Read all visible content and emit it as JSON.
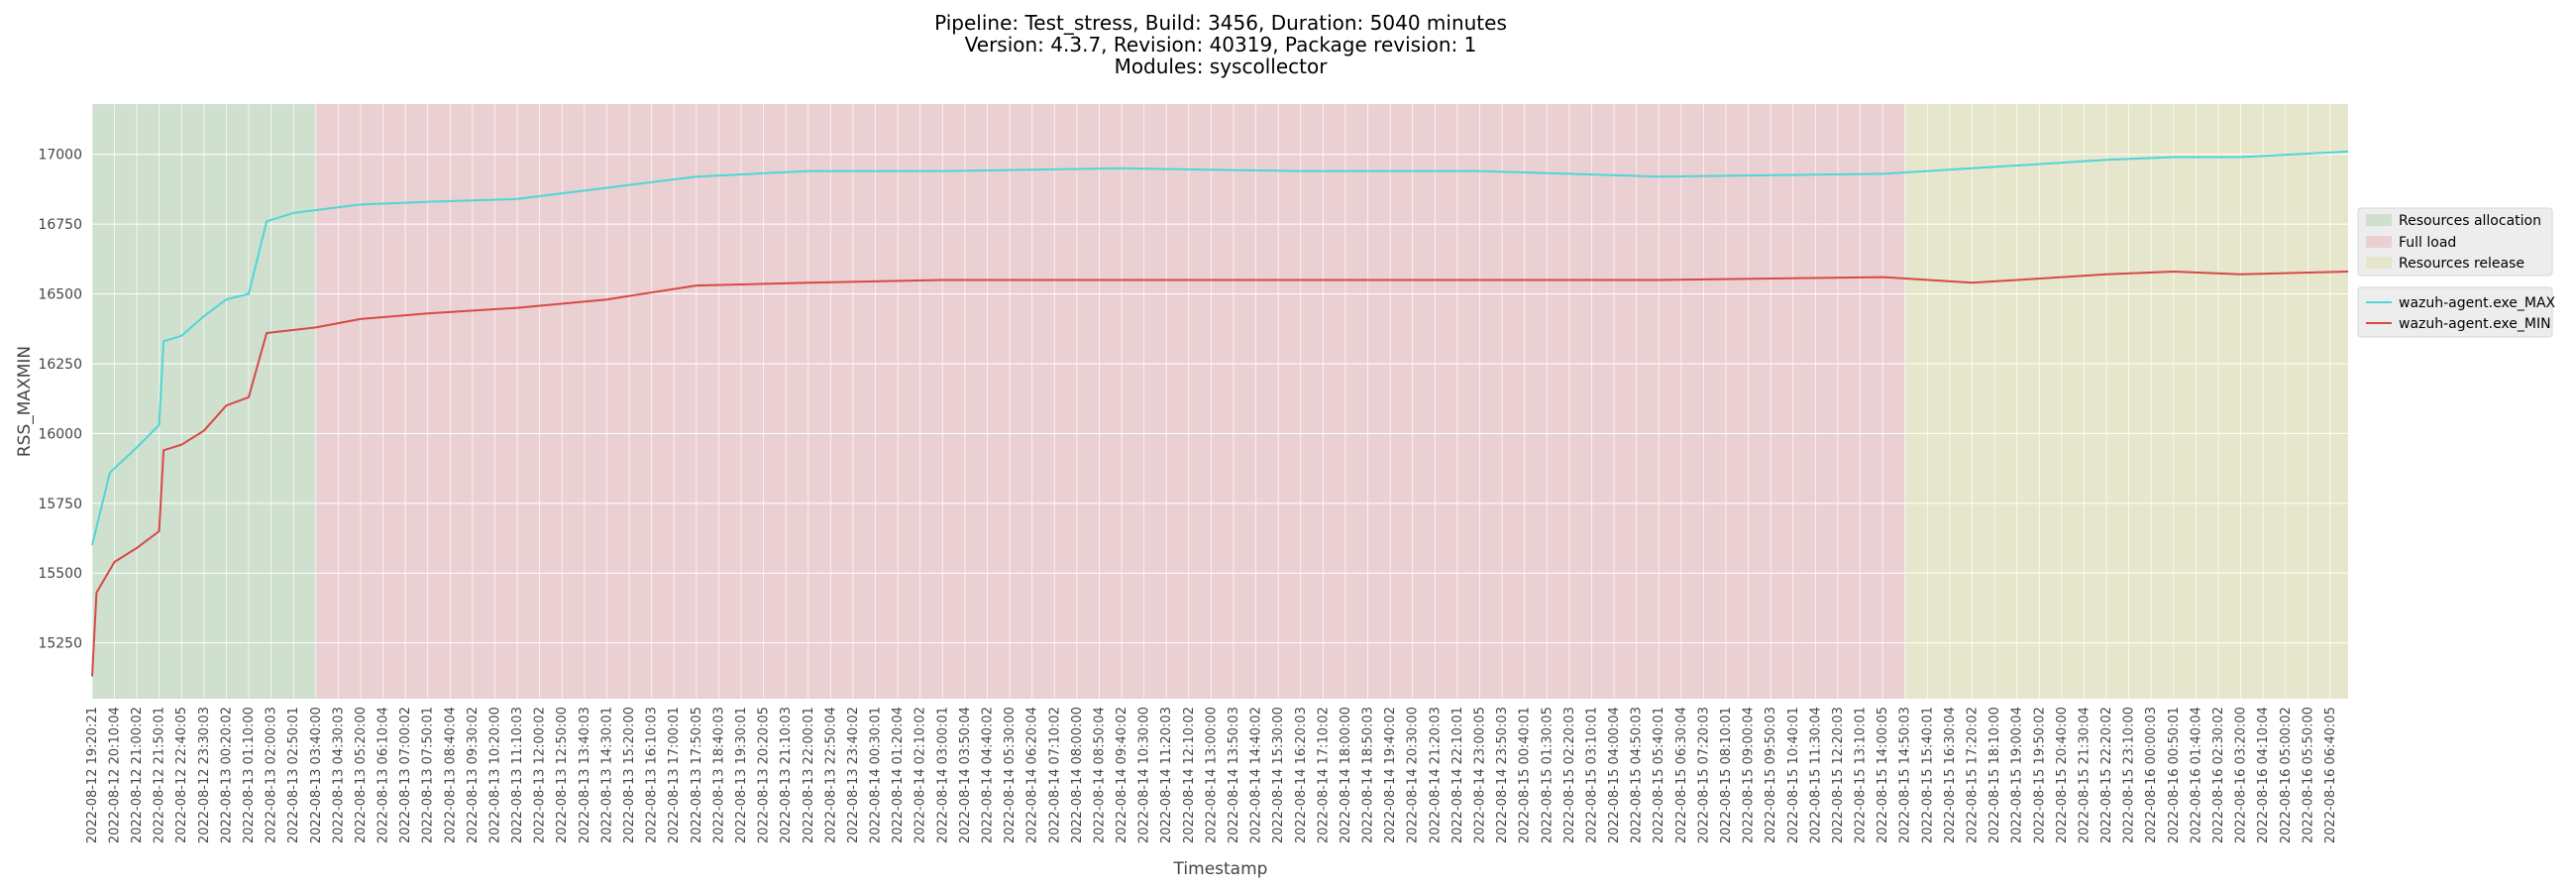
{
  "chart_data": {
    "type": "line",
    "title_lines": [
      "Pipeline: Test_stress, Build: 3456, Duration: 5040 minutes",
      "Version: 4.3.7, Revision: 40319, Package revision: 1",
      "Modules: syscollector"
    ],
    "xlabel": "Timestamp",
    "ylabel": "RSS_MAXMIN",
    "ylim": [
      15050,
      17180
    ],
    "yticks": [
      15250,
      15500,
      15750,
      16000,
      16250,
      16500,
      16750,
      17000
    ],
    "x_start": "2022-08-12 19:20:21",
    "x_tick_labels": [
      "2022-08-12 19:20:21",
      "2022-08-12 20:10:04",
      "2022-08-12 21:00:02",
      "2022-08-12 21:50:01",
      "2022-08-12 22:40:05",
      "2022-08-12 23:30:03",
      "2022-08-13 00:20:02",
      "2022-08-13 01:10:00",
      "2022-08-13 02:00:03",
      "2022-08-13 02:50:01",
      "2022-08-13 03:40:00",
      "2022-08-13 04:30:03",
      "2022-08-13 05:20:00",
      "2022-08-13 06:10:04",
      "2022-08-13 07:00:02",
      "2022-08-13 07:50:01",
      "2022-08-13 08:40:04",
      "2022-08-13 09:30:02",
      "2022-08-13 10:20:00",
      "2022-08-13 11:10:03",
      "2022-08-13 12:00:02",
      "2022-08-13 12:50:00",
      "2022-08-13 13:40:03",
      "2022-08-13 14:30:01",
      "2022-08-13 15:20:00",
      "2022-08-13 16:10:03",
      "2022-08-13 17:00:01",
      "2022-08-13 17:50:05",
      "2022-08-13 18:40:03",
      "2022-08-13 19:30:01",
      "2022-08-13 20:20:05",
      "2022-08-13 21:10:03",
      "2022-08-13 22:00:01",
      "2022-08-13 22:50:04",
      "2022-08-13 23:40:02",
      "2022-08-14 00:30:01",
      "2022-08-14 01:20:04",
      "2022-08-14 02:10:02",
      "2022-08-14 03:00:01",
      "2022-08-14 03:50:04",
      "2022-08-14 04:40:02",
      "2022-08-14 05:30:00",
      "2022-08-14 06:20:04",
      "2022-08-14 07:10:02",
      "2022-08-14 08:00:00",
      "2022-08-14 08:50:04",
      "2022-08-14 09:40:02",
      "2022-08-14 10:30:00",
      "2022-08-14 11:20:03",
      "2022-08-14 12:10:02",
      "2022-08-14 13:00:00",
      "2022-08-14 13:50:03",
      "2022-08-14 14:40:02",
      "2022-08-14 15:30:00",
      "2022-08-14 16:20:03",
      "2022-08-14 17:10:02",
      "2022-08-14 18:00:00",
      "2022-08-14 18:50:03",
      "2022-08-14 19:40:02",
      "2022-08-14 20:30:00",
      "2022-08-14 21:20:03",
      "2022-08-14 22:10:01",
      "2022-08-14 23:00:05",
      "2022-08-14 23:50:03",
      "2022-08-15 00:40:01",
      "2022-08-15 01:30:05",
      "2022-08-15 02:20:03",
      "2022-08-15 03:10:01",
      "2022-08-15 04:00:04",
      "2022-08-15 04:50:03",
      "2022-08-15 05:40:01",
      "2022-08-15 06:30:04",
      "2022-08-15 07:20:03",
      "2022-08-15 08:10:01",
      "2022-08-15 09:00:04",
      "2022-08-15 09:50:03",
      "2022-08-15 10:40:01",
      "2022-08-15 11:30:04",
      "2022-08-15 12:20:03",
      "2022-08-15 13:10:01",
      "2022-08-15 14:00:05",
      "2022-08-15 14:50:03",
      "2022-08-15 15:40:01",
      "2022-08-15 16:30:04",
      "2022-08-15 17:20:02",
      "2022-08-15 18:10:00",
      "2022-08-15 19:00:04",
      "2022-08-15 19:50:02",
      "2022-08-15 20:40:00",
      "2022-08-15 21:30:04",
      "2022-08-15 22:20:02",
      "2022-08-15 23:10:00",
      "2022-08-16 00:00:03",
      "2022-08-16 00:50:01",
      "2022-08-16 01:40:04",
      "2022-08-16 02:30:02",
      "2022-08-16 03:20:00",
      "2022-08-16 04:10:04",
      "2022-08-16 05:00:02",
      "2022-08-16 05:50:00",
      "2022-08-16 06:40:05"
    ],
    "phases": [
      {
        "name": "Resources allocation",
        "start": "2022-08-12 19:20:21",
        "end": "2022-08-13 03:40:00",
        "color": "#cfe0cf"
      },
      {
        "name": "Full load",
        "start": "2022-08-13 03:40:00",
        "end": "2022-08-15 14:50:03",
        "color": "#ead0d2"
      },
      {
        "name": "Resources release",
        "start": "2022-08-15 14:50:03",
        "end": "2022-08-16 07:20:00",
        "color": "#e6e6cc"
      }
    ],
    "series": [
      {
        "name": "wazuh-agent.exe_MAX",
        "color": "#4fd6d6",
        "values": [
          [
            "2022-08-12 19:20:21",
            15600
          ],
          [
            "2022-08-12 20:00:00",
            15860
          ],
          [
            "2022-08-12 21:00:02",
            15950
          ],
          [
            "2022-08-12 21:50:01",
            16030
          ],
          [
            "2022-08-12 22:00:00",
            16330
          ],
          [
            "2022-08-12 22:40:05",
            16350
          ],
          [
            "2022-08-12 23:30:03",
            16420
          ],
          [
            "2022-08-13 00:20:02",
            16480
          ],
          [
            "2022-08-13 01:10:00",
            16500
          ],
          [
            "2022-08-13 01:50:00",
            16760
          ],
          [
            "2022-08-13 02:50:01",
            16790
          ],
          [
            "2022-08-13 03:40:00",
            16800
          ],
          [
            "2022-08-13 05:20:00",
            16820
          ],
          [
            "2022-08-13 07:50:01",
            16830
          ],
          [
            "2022-08-13 11:10:03",
            16840
          ],
          [
            "2022-08-13 14:30:01",
            16880
          ],
          [
            "2022-08-13 17:50:05",
            16920
          ],
          [
            "2022-08-13 22:00:01",
            16940
          ],
          [
            "2022-08-14 03:00:01",
            16940
          ],
          [
            "2022-08-14 09:40:02",
            16950
          ],
          [
            "2022-08-14 16:20:03",
            16940
          ],
          [
            "2022-08-14 23:00:05",
            16940
          ],
          [
            "2022-08-15 05:40:01",
            16920
          ],
          [
            "2022-08-15 14:00:05",
            16930
          ],
          [
            "2022-08-15 17:20:02",
            16950
          ],
          [
            "2022-08-15 22:20:02",
            16980
          ],
          [
            "2022-08-16 00:50:01",
            16990
          ],
          [
            "2022-08-16 03:20:00",
            16990
          ],
          [
            "2022-08-16 07:20:00",
            17010
          ]
        ]
      },
      {
        "name": "wazuh-agent.exe_MIN",
        "color": "#d84848",
        "values": [
          [
            "2022-08-12 19:20:21",
            15130
          ],
          [
            "2022-08-12 19:30:00",
            15430
          ],
          [
            "2022-08-12 20:10:04",
            15540
          ],
          [
            "2022-08-12 21:00:02",
            15590
          ],
          [
            "2022-08-12 21:50:01",
            15650
          ],
          [
            "2022-08-12 22:00:00",
            15940
          ],
          [
            "2022-08-12 22:40:05",
            15960
          ],
          [
            "2022-08-12 23:30:03",
            16010
          ],
          [
            "2022-08-13 00:20:02",
            16100
          ],
          [
            "2022-08-13 01:10:00",
            16130
          ],
          [
            "2022-08-13 01:50:00",
            16360
          ],
          [
            "2022-08-13 03:40:00",
            16380
          ],
          [
            "2022-08-13 05:20:00",
            16410
          ],
          [
            "2022-08-13 07:50:01",
            16430
          ],
          [
            "2022-08-13 11:10:03",
            16450
          ],
          [
            "2022-08-13 14:30:01",
            16480
          ],
          [
            "2022-08-13 17:50:05",
            16530
          ],
          [
            "2022-08-13 22:00:01",
            16540
          ],
          [
            "2022-08-14 03:00:01",
            16550
          ],
          [
            "2022-08-14 09:40:02",
            16550
          ],
          [
            "2022-08-14 16:20:03",
            16550
          ],
          [
            "2022-08-14 23:00:05",
            16550
          ],
          [
            "2022-08-15 05:40:01",
            16550
          ],
          [
            "2022-08-15 14:00:05",
            16560
          ],
          [
            "2022-08-15 17:20:02",
            16540
          ],
          [
            "2022-08-15 22:20:02",
            16570
          ],
          [
            "2022-08-16 00:50:01",
            16580
          ],
          [
            "2022-08-16 03:20:00",
            16570
          ],
          [
            "2022-08-16 07:20:00",
            16580
          ]
        ]
      }
    ],
    "grid": true,
    "legend_position": "right"
  }
}
